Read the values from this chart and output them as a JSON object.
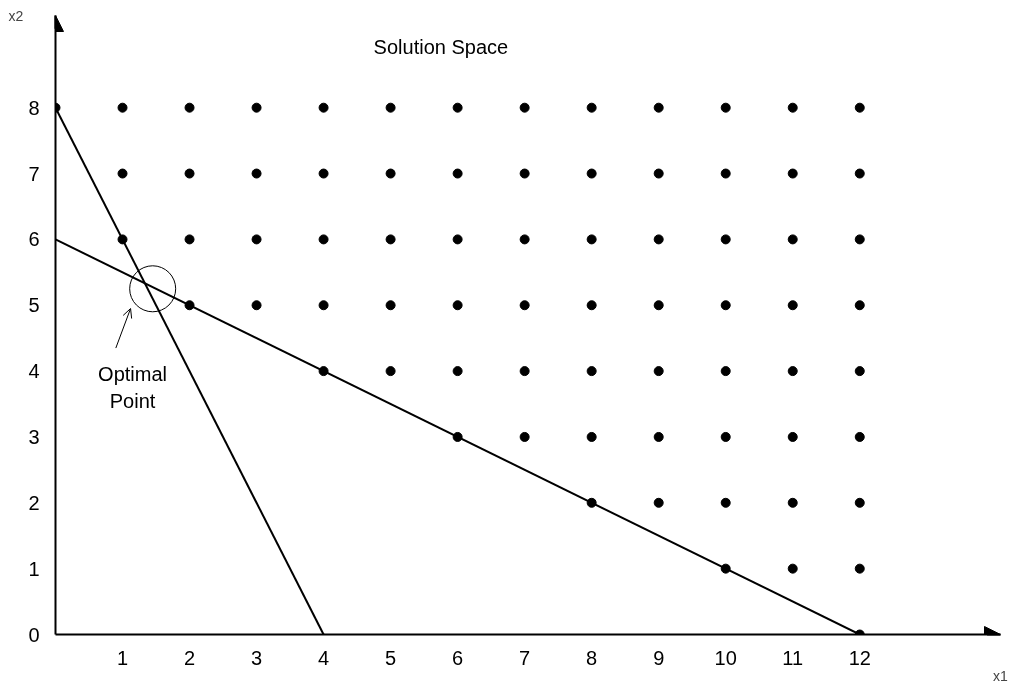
{
  "chart_data": {
    "type": "scatter",
    "title": "Solution Space",
    "xlabel": "x1",
    "ylabel": "x2",
    "xlim": [
      0,
      14.1
    ],
    "ylim": [
      0,
      9.4
    ],
    "xticks": [
      1,
      2,
      3,
      4,
      5,
      6,
      7,
      8,
      9,
      10,
      11,
      12
    ],
    "yticks": [
      0,
      1,
      2,
      3,
      4,
      5,
      6,
      7,
      8
    ],
    "grid": false,
    "series": [
      {
        "marker": "circle",
        "color": "#000000",
        "x": [
          0,
          1,
          2,
          3,
          4,
          5,
          6,
          7,
          8,
          9,
          10,
          11,
          12,
          1,
          2,
          3,
          4,
          5,
          6,
          7,
          8,
          9,
          10,
          11,
          12,
          1,
          2,
          3,
          4,
          5,
          6,
          7,
          8,
          9,
          10,
          11,
          12,
          2,
          3,
          4,
          5,
          6,
          7,
          8,
          9,
          10,
          11,
          12,
          4,
          5,
          6,
          7,
          8,
          9,
          10,
          11,
          12,
          6,
          7,
          8,
          9,
          10,
          11,
          12,
          8,
          9,
          10,
          11,
          12,
          10,
          11,
          12,
          12
        ],
        "values": [
          8,
          8,
          8,
          8,
          8,
          8,
          8,
          8,
          8,
          8,
          8,
          8,
          8,
          7,
          7,
          7,
          7,
          7,
          7,
          7,
          7,
          7,
          7,
          7,
          7,
          6,
          6,
          6,
          6,
          6,
          6,
          6,
          6,
          6,
          6,
          6,
          6,
          5,
          5,
          5,
          5,
          5,
          5,
          5,
          5,
          5,
          5,
          5,
          4,
          4,
          4,
          4,
          4,
          4,
          4,
          4,
          4,
          3,
          3,
          3,
          3,
          3,
          3,
          3,
          2,
          2,
          2,
          2,
          2,
          1,
          1,
          1,
          0
        ]
      },
      {
        "type": "line",
        "color": "#000000",
        "x": [
          0,
          4
        ],
        "values": [
          8,
          0
        ]
      },
      {
        "type": "line",
        "color": "#000000",
        "x": [
          0,
          12
        ],
        "values": [
          6,
          0
        ]
      }
    ],
    "annotations": [
      "Optimal Point"
    ]
  }
}
